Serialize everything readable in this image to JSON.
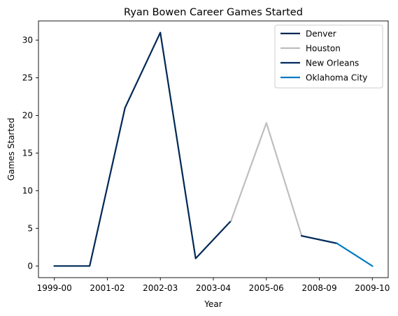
{
  "chart_data": {
    "type": "line",
    "title": "Ryan Bowen Career Games Started",
    "xlabel": "Year",
    "ylabel": "Games Started",
    "xticks": [
      "1999-00",
      "2001-02",
      "2002-03",
      "2003-04",
      "2005-06",
      "2008-09",
      "2009-10"
    ],
    "yticks": [
      0,
      5,
      10,
      15,
      20,
      25,
      30
    ],
    "ylim": [
      -1.55,
      32.55
    ],
    "legend_position": "top-right",
    "grid": false,
    "segments": [
      {
        "series": "Denver",
        "points": [
          [
            0,
            0
          ],
          [
            1,
            0
          ],
          [
            2,
            21
          ],
          [
            3,
            31
          ],
          [
            4,
            1
          ],
          [
            5,
            6
          ]
        ]
      },
      {
        "series": "Houston",
        "points": [
          [
            5,
            6
          ],
          [
            6,
            19
          ],
          [
            7,
            4
          ]
        ]
      },
      {
        "series": "New Orleans",
        "points": [
          [
            7,
            4
          ],
          [
            8,
            3
          ]
        ]
      },
      {
        "series": "Oklahoma City",
        "points": [
          [
            8,
            3
          ],
          [
            9,
            0
          ]
        ]
      }
    ],
    "series": [
      {
        "name": "Denver",
        "color": "#002855"
      },
      {
        "name": "Houston",
        "color": "#BEBEBE"
      },
      {
        "name": "New Orleans",
        "color": "#002B5C"
      },
      {
        "name": "Oklahoma City",
        "color": "#007AC1"
      }
    ]
  }
}
